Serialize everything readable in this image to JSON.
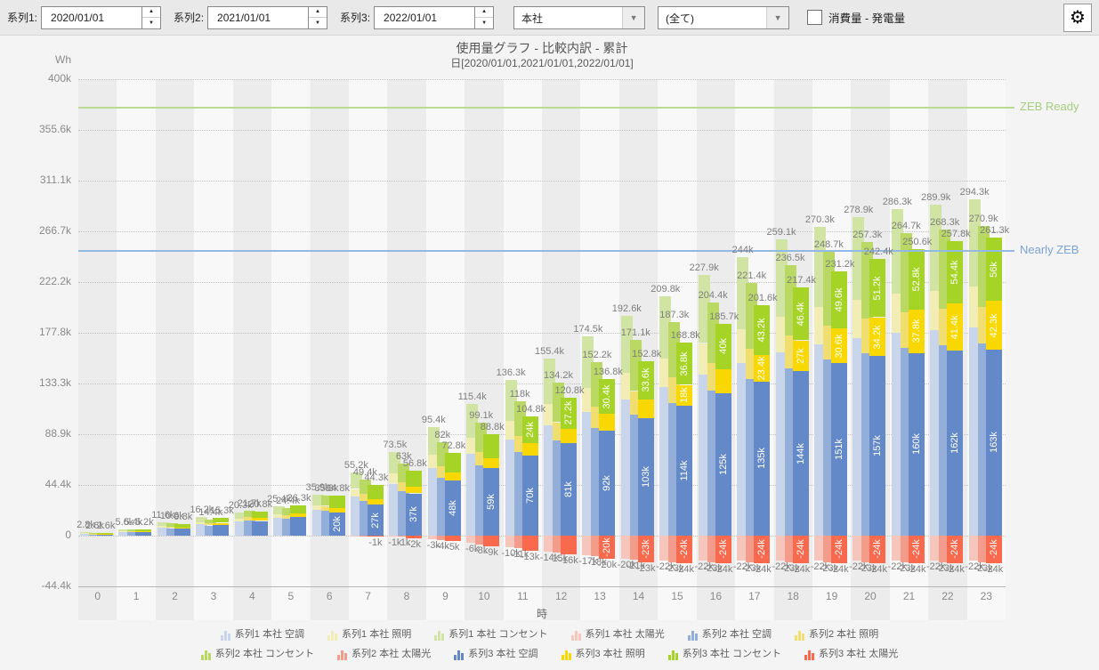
{
  "toolbar": {
    "series_fields": [
      {
        "label": "系列1:",
        "value": "2020/01/01"
      },
      {
        "label": "系列2:",
        "value": "2021/01/01"
      },
      {
        "label": "系列3:",
        "value": "2022/01/01"
      }
    ],
    "site_select": {
      "value": "本社"
    },
    "filter_select": {
      "value": "(全て)"
    },
    "checkbox_label": "消費量 - 発電量"
  },
  "chart_data": {
    "type": "bar",
    "title": "使用量グラフ - 比較内訳 - 累計",
    "subtitle": "日[2020/01/01,2021/01/01,2022/01/01]",
    "y_unit": "Wh",
    "xlabel": "時",
    "ylim_k": [
      -44.4,
      400
    ],
    "grid": "dotted-horizontal",
    "yticks": [
      {
        "label": "400k",
        "v": 400
      },
      {
        "label": "355.6k",
        "v": 355.6
      },
      {
        "label": "311.1k",
        "v": 311.1
      },
      {
        "label": "266.7k",
        "v": 266.7
      },
      {
        "label": "222.2k",
        "v": 222.2
      },
      {
        "label": "177.8k",
        "v": 177.8
      },
      {
        "label": "133.3k",
        "v": 133.3
      },
      {
        "label": "88.9k",
        "v": 88.9
      },
      {
        "label": "44.4k",
        "v": 44.4
      },
      {
        "label": "0",
        "v": 0
      },
      {
        "label": "-44.4k",
        "v": -44.4
      }
    ],
    "ref_lines": [
      {
        "label": "ZEB Ready",
        "value_k": 375,
        "color": "#bcda93",
        "label_color": "#a6ce7c"
      },
      {
        "label": "Nearly ZEB",
        "value_k": 249,
        "color": "#94b8e4",
        "label_color": "#7aa3d8"
      }
    ],
    "series": [
      {
        "name": "系列1",
        "date": "2020/01/01",
        "palette": {
          "blue": "#c8d5ea",
          "yellow": "#f2edb4",
          "green": "#d2e4a4",
          "red": "#f6c5bc"
        }
      },
      {
        "name": "系列2",
        "date": "2021/01/01",
        "palette": {
          "blue": "#93afd9",
          "yellow": "#f0df70",
          "green": "#bad964",
          "red": "#f49c8c"
        }
      },
      {
        "name": "系列3",
        "date": "2022/01/01",
        "palette": {
          "blue": "#6389c8",
          "yellow": "#f8d800",
          "green": "#a5d427",
          "red": "#f9694e"
        }
      }
    ],
    "segment_names": [
      "空調",
      "照明",
      "コンセント",
      "太陽光"
    ],
    "approx_split": {
      "blue": 0.62,
      "yellow": 0.12,
      "green": 0.26
    },
    "hours": [
      {
        "h": "0",
        "totals": [
          2.8,
          2.6,
          2.6
        ],
        "total_labels": [
          "2.8k",
          "2.6k",
          "2.6k"
        ],
        "neg": [
          0,
          0,
          0
        ],
        "neg_labels": [
          "",
          "",
          ""
        ],
        "s3": {
          "b": 1.6,
          "y": 0.3,
          "g": 0.7
        },
        "s3_labels": {
          "bl": "",
          "yl": "",
          "gl": "",
          "rl": ""
        }
      },
      {
        "h": "1",
        "totals": [
          5.6,
          5.4,
          5.2
        ],
        "total_labels": [
          "5.6k",
          "5.4k",
          "5.2k"
        ],
        "neg": [
          0,
          0,
          0
        ],
        "neg_labels": [
          "",
          "",
          ""
        ],
        "s3": {
          "b": 3.2,
          "y": 0.6,
          "g": 1.4
        },
        "s3_labels": {
          "bl": "",
          "yl": "",
          "gl": "",
          "rl": ""
        }
      },
      {
        "h": "2",
        "totals": [
          11.6,
          10.6,
          9.8
        ],
        "total_labels": [
          "11.6k",
          "10.6k",
          "9.8k"
        ],
        "neg": [
          0,
          0,
          0
        ],
        "neg_labels": [
          "",
          "",
          ""
        ],
        "s3": {
          "b": 6.0,
          "y": 1.2,
          "g": 2.6
        },
        "s3_labels": {
          "bl": "",
          "yl": "",
          "gl": "",
          "rl": ""
        }
      },
      {
        "h": "3",
        "totals": [
          16.2,
          14.4,
          15.3
        ],
        "total_labels": [
          "16.2k",
          "14.4k",
          "15.3k"
        ],
        "neg": [
          0,
          0,
          0
        ],
        "neg_labels": [
          "",
          "",
          ""
        ],
        "s3": {
          "b": 9.4,
          "y": 1.9,
          "g": 4.0
        },
        "s3_labels": {
          "bl": "",
          "yl": "",
          "gl": "",
          "rl": ""
        }
      },
      {
        "h": "4",
        "totals": [
          20.3,
          21.7,
          20.8
        ],
        "total_labels": [
          "20.3k",
          "21.7k",
          "20.8k"
        ],
        "neg": [
          0,
          0,
          0
        ],
        "neg_labels": [
          "",
          "",
          ""
        ],
        "s3": {
          "b": 12.8,
          "y": 2.6,
          "g": 5.4
        },
        "s3_labels": {
          "bl": "",
          "yl": "",
          "gl": "",
          "rl": ""
        }
      },
      {
        "h": "5",
        "totals": [
          25.4,
          24.4,
          26.3
        ],
        "total_labels": [
          "25.4k",
          "24.4k",
          "26.3k"
        ],
        "neg": [
          0,
          0,
          0
        ],
        "neg_labels": [
          "",
          "",
          ""
        ],
        "s3": {
          "b": 16.2,
          "y": 3.3,
          "g": 6.8
        },
        "s3_labels": {
          "bl": "",
          "yl": "",
          "gl": "",
          "rl": ""
        }
      },
      {
        "h": "6",
        "totals": [
          35.9,
          35.3,
          34.8
        ],
        "total_labels": [
          "35.9k",
          "35.3k",
          "34.8k"
        ],
        "neg": [
          0,
          0,
          0
        ],
        "neg_labels": [
          "",
          "",
          ""
        ],
        "s3": {
          "b": 20.0,
          "y": 4.4,
          "g": 10.4
        },
        "s3_labels": {
          "bl": "20k",
          "yl": "",
          "gl": "",
          "rl": ""
        }
      },
      {
        "h": "7",
        "totals": [
          55.2,
          49.4,
          44.3
        ],
        "total_labels": [
          "55.2k",
          "49.4k",
          "44.3k"
        ],
        "neg": [
          -0.5,
          -0.7,
          -1
        ],
        "neg_labels": [
          "",
          "",
          "-1k"
        ],
        "s3": {
          "b": 27.0,
          "y": 5.2,
          "g": 12.1
        },
        "s3_labels": {
          "bl": "27k",
          "yl": "",
          "gl": "",
          "rl": ""
        }
      },
      {
        "h": "8",
        "totals": [
          73.5,
          63,
          56.8
        ],
        "total_labels": [
          "73.5k",
          "63k",
          "56.8k"
        ],
        "neg": [
          -1,
          -1,
          -2
        ],
        "neg_labels": [
          "-1k",
          "-1k",
          "-2k"
        ],
        "s3": {
          "b": 37.0,
          "y": 5.9,
          "g": 13.9
        },
        "s3_labels": {
          "bl": "37k",
          "yl": "",
          "gl": "",
          "rl": ""
        }
      },
      {
        "h": "9",
        "totals": [
          95.4,
          82,
          72.8
        ],
        "total_labels": [
          "95.4k",
          "82k",
          "72.8k"
        ],
        "neg": [
          -3,
          -4,
          -5
        ],
        "neg_labels": [
          "-3k",
          "-4k",
          "-5k"
        ],
        "s3": {
          "b": 48.0,
          "y": 7.4,
          "g": 17.4
        },
        "s3_labels": {
          "bl": "48k",
          "yl": "",
          "gl": "",
          "rl": ""
        }
      },
      {
        "h": "10",
        "totals": [
          115.4,
          99.1,
          88.8
        ],
        "total_labels": [
          "115.4k",
          "99.1k",
          "88.8k"
        ],
        "neg": [
          -6,
          -8,
          -9
        ],
        "neg_labels": [
          "-6k",
          "-8k",
          "-9k"
        ],
        "s3": {
          "b": 59.0,
          "y": 9.0,
          "g": 20.8
        },
        "s3_labels": {
          "bl": "59k",
          "yl": "",
          "gl": "",
          "rl": ""
        }
      },
      {
        "h": "11",
        "totals": [
          136.3,
          118,
          104.8
        ],
        "total_labels": [
          "136.3k",
          "118k",
          "104.8k"
        ],
        "neg": [
          -10,
          -11,
          -13
        ],
        "neg_labels": [
          "-10k",
          "-11k",
          "-13k"
        ],
        "s3": {
          "b": 70.0,
          "y": 10.8,
          "g": 24.0
        },
        "s3_labels": {
          "bl": "70k",
          "yl": "",
          "gl": "24k",
          "rl": ""
        }
      },
      {
        "h": "12",
        "totals": [
          155.4,
          134.2,
          120.8
        ],
        "total_labels": [
          "155.4k",
          "134.2k",
          "120.8k"
        ],
        "neg": [
          -14,
          -15,
          -16
        ],
        "neg_labels": [
          "-14k",
          "-15k",
          "-16k"
        ],
        "s3": {
          "b": 81.0,
          "y": 12.6,
          "g": 27.2
        },
        "s3_labels": {
          "bl": "81k",
          "yl": "",
          "gl": "27.2k",
          "rl": ""
        }
      },
      {
        "h": "13",
        "totals": [
          174.5,
          152.2,
          136.8
        ],
        "total_labels": [
          "174.5k",
          "152.2k",
          "136.8k"
        ],
        "neg": [
          -17,
          -18,
          -20
        ],
        "neg_labels": [
          "-17k",
          "-18k",
          "-20k"
        ],
        "s3": {
          "b": 92.0,
          "y": 14.4,
          "g": 30.4
        },
        "s3_labels": {
          "bl": "92k",
          "yl": "",
          "gl": "30.4k",
          "rl": "-20k"
        }
      },
      {
        "h": "14",
        "totals": [
          192.6,
          171.1,
          152.8
        ],
        "total_labels": [
          "192.6k",
          "171.1k",
          "152.8k"
        ],
        "neg": [
          -20,
          -21,
          -23
        ],
        "neg_labels": [
          "-20k",
          "-21k",
          "-23k"
        ],
        "s3": {
          "b": 103.0,
          "y": 16.2,
          "g": 33.6
        },
        "s3_labels": {
          "bl": "103k",
          "yl": "",
          "gl": "33.6k",
          "rl": "-23k"
        }
      },
      {
        "h": "15",
        "totals": [
          209.8,
          187.3,
          168.8
        ],
        "total_labels": [
          "209.8k",
          "187.3k",
          "168.8k"
        ],
        "neg": [
          -22,
          -23,
          -24
        ],
        "neg_labels": [
          "-22k",
          "-23k",
          "-24k"
        ],
        "s3": {
          "b": 114.0,
          "y": 18.0,
          "g": 36.8
        },
        "s3_labels": {
          "bl": "114k",
          "yl": "18k",
          "gl": "36.8k",
          "rl": "-24k"
        }
      },
      {
        "h": "16",
        "totals": [
          227.9,
          204.4,
          185.7
        ],
        "total_labels": [
          "227.9k",
          "204.4k",
          "185.7k"
        ],
        "neg": [
          -22,
          -23,
          -24
        ],
        "neg_labels": [
          "-22k",
          "-23k",
          "-24k"
        ],
        "s3": {
          "b": 125.0,
          "y": 20.7,
          "g": 40.0
        },
        "s3_labels": {
          "bl": "125k",
          "yl": "",
          "gl": "40k",
          "rl": "-24k"
        }
      },
      {
        "h": "17",
        "totals": [
          244,
          221.4,
          201.6
        ],
        "total_labels": [
          "244k",
          "221.4k",
          "201.6k"
        ],
        "neg": [
          -22,
          -23,
          -24
        ],
        "neg_labels": [
          "-22k",
          "-23k",
          "-24k"
        ],
        "s3": {
          "b": 135.0,
          "y": 23.4,
          "g": 43.2
        },
        "s3_labels": {
          "bl": "135k",
          "yl": "23.4k",
          "gl": "43.2k",
          "rl": "-24k"
        }
      },
      {
        "h": "18",
        "totals": [
          259.1,
          236.5,
          217.4
        ],
        "total_labels": [
          "259.1k",
          "236.5k",
          "217.4k"
        ],
        "neg": [
          -22,
          -23,
          -24
        ],
        "neg_labels": [
          "-22k",
          "-23k",
          "-24k"
        ],
        "s3": {
          "b": 144.0,
          "y": 27.0,
          "g": 46.4
        },
        "s3_labels": {
          "bl": "144k",
          "yl": "27k",
          "gl": "46.4k",
          "rl": "-24k"
        }
      },
      {
        "h": "19",
        "totals": [
          270.3,
          248.7,
          231.2
        ],
        "total_labels": [
          "270.3k",
          "248.7k",
          "231.2k"
        ],
        "neg": [
          -22,
          -23,
          -24
        ],
        "neg_labels": [
          "-22k",
          "-23k",
          "-24k"
        ],
        "s3": {
          "b": 151.0,
          "y": 30.6,
          "g": 49.6
        },
        "s3_labels": {
          "bl": "151k",
          "yl": "30.6k",
          "gl": "49.6k",
          "rl": "-24k"
        }
      },
      {
        "h": "20",
        "totals": [
          278.9,
          257.3,
          242.4
        ],
        "total_labels": [
          "278.9k",
          "257.3k",
          "242.4k"
        ],
        "neg": [
          -22,
          -23,
          -24
        ],
        "neg_labels": [
          "-22k",
          "-23k",
          "-24k"
        ],
        "s3": {
          "b": 157.0,
          "y": 34.2,
          "g": 51.2
        },
        "s3_labels": {
          "bl": "157k",
          "yl": "34.2k",
          "gl": "51.2k",
          "rl": "-24k"
        }
      },
      {
        "h": "21",
        "totals": [
          286.3,
          264.7,
          250.6
        ],
        "total_labels": [
          "286.3k",
          "264.7k",
          "250.6k"
        ],
        "neg": [
          -22,
          -23,
          -24
        ],
        "neg_labels": [
          "-22k",
          "-23k",
          "-24k"
        ],
        "s3": {
          "b": 160.0,
          "y": 37.8,
          "g": 52.8
        },
        "s3_labels": {
          "bl": "160k",
          "yl": "37.8k",
          "gl": "52.8k",
          "rl": "-24k"
        }
      },
      {
        "h": "22",
        "totals": [
          289.9,
          268.3,
          257.8
        ],
        "total_labels": [
          "289.9k",
          "268.3k",
          "257.8k"
        ],
        "neg": [
          -22,
          -23,
          -24
        ],
        "neg_labels": [
          "-22k",
          "-23k",
          "-24k"
        ],
        "s3": {
          "b": 162.0,
          "y": 41.4,
          "g": 54.4
        },
        "s3_labels": {
          "bl": "162k",
          "yl": "41.4k",
          "gl": "54.4k",
          "rl": "-24k"
        }
      },
      {
        "h": "23",
        "totals": [
          294.3,
          270.9,
          261.3
        ],
        "total_labels": [
          "294.3k",
          "270.9k",
          "261.3k"
        ],
        "neg": [
          -22,
          -23,
          -24
        ],
        "neg_labels": [
          "-22k",
          "-23k",
          "-24k"
        ],
        "s3": {
          "b": 163.0,
          "y": 42.3,
          "g": 56.0
        },
        "s3_labels": {
          "bl": "163k",
          "yl": "42.3k",
          "gl": "56k",
          "rl": "-24k"
        }
      }
    ]
  },
  "legend": {
    "rows": [
      [
        {
          "label": "系列1 本社 空調",
          "color": "#c8d5ea"
        },
        {
          "label": "系列1 本社 照明",
          "color": "#f2edb4"
        },
        {
          "label": "系列1 本社 コンセント",
          "color": "#d2e4a4"
        },
        {
          "label": "系列1 本社 太陽光",
          "color": "#f6c5bc"
        },
        {
          "label": "系列2 本社 空調",
          "color": "#93afd9"
        },
        {
          "label": "系列2 本社 照明",
          "color": "#f0df70"
        }
      ],
      [
        {
          "label": "系列2 本社 コンセント",
          "color": "#bad964"
        },
        {
          "label": "系列2 本社 太陽光",
          "color": "#f49c8c"
        },
        {
          "label": "系列3 本社 空調",
          "color": "#6389c8"
        },
        {
          "label": "系列3 本社 照明",
          "color": "#f8d800"
        },
        {
          "label": "系列3 本社 コンセント",
          "color": "#a5d427"
        },
        {
          "label": "系列3 本社 太陽光",
          "color": "#f9694e"
        }
      ]
    ]
  }
}
